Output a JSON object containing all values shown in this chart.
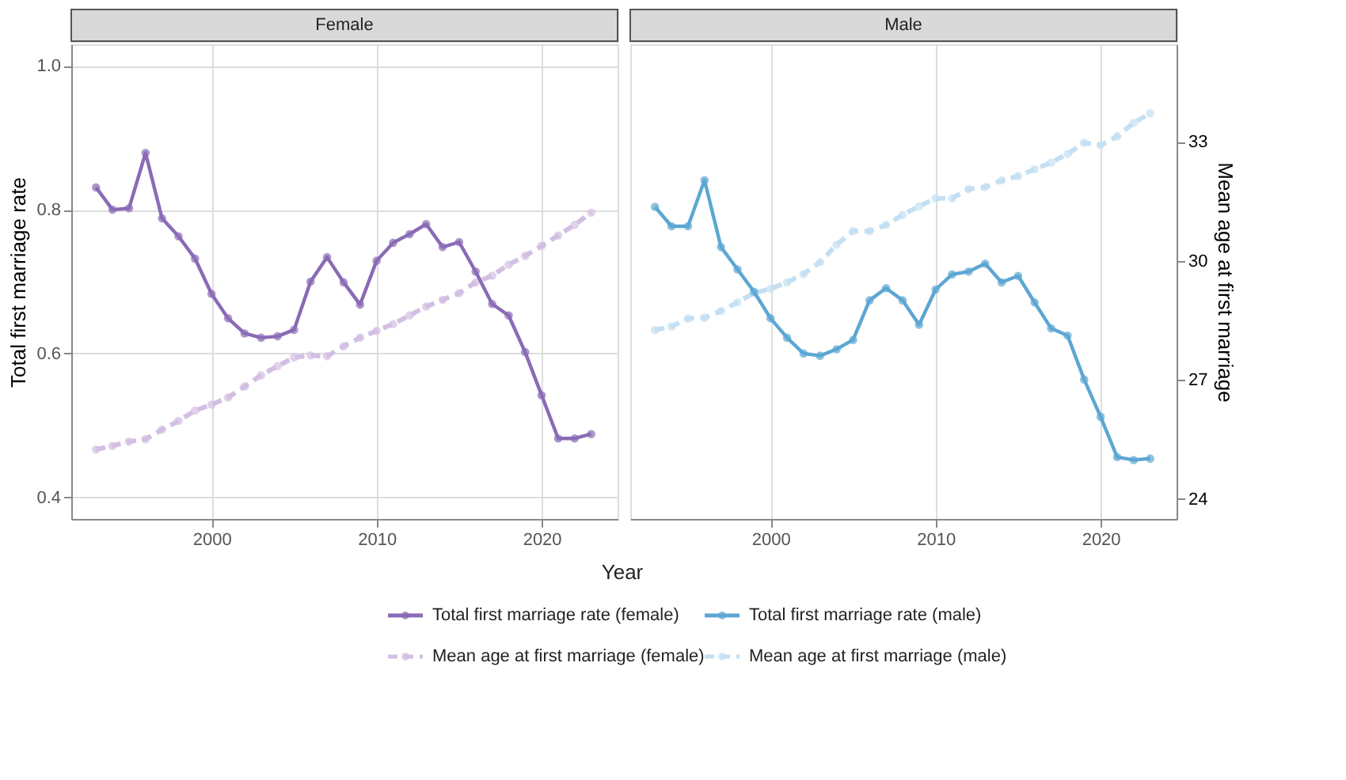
{
  "chart_data": [
    {
      "type": "line",
      "title": "Female",
      "xlabel": "Year",
      "ylabel": "Total first marriage rate",
      "xlim": [
        1991.5,
        2024.6
      ],
      "xticks": [
        2000,
        2010,
        2020
      ],
      "ylim": [
        0.37,
        1.03
      ],
      "yticks": [
        0.4,
        0.6,
        0.8,
        {
          "value": 1,
          "label": "1.0"
        }
      ],
      "y2lim": [
        23.5,
        35.46
      ],
      "grid": true,
      "legend": "bottom",
      "x": [
        1993,
        1994,
        1995,
        1996,
        1997,
        1998,
        1999,
        2000,
        2001,
        2002,
        2003,
        2004,
        2005,
        2006,
        2007,
        2008,
        2009,
        2010,
        2011,
        2012,
        2013,
        2014,
        2015,
        2016,
        2017,
        2018,
        2019,
        2020,
        2021,
        2022,
        2023
      ],
      "series": [
        {
          "name": "Total first marriage rate (female)",
          "color": "#8a6bb5",
          "marker": "circle",
          "line_style": "solid",
          "values": [
            0.831,
            0.8,
            0.802,
            0.879,
            0.788,
            0.763,
            0.732,
            0.683,
            0.649,
            0.628,
            0.622,
            0.624,
            0.633,
            0.7,
            0.734,
            0.699,
            0.668,
            0.729,
            0.754,
            0.766,
            0.78,
            0.748,
            0.755,
            0.714,
            0.669,
            0.653,
            0.602,
            0.542,
            0.482,
            0.482,
            0.488
          ]
        },
        {
          "name": "Mean age at first marriage (female)",
          "color": "#d3bfe2",
          "marker": "circle",
          "line_style": "dashed",
          "axis": "y2",
          "values": [
            25.25,
            25.34,
            25.45,
            25.51,
            25.75,
            25.97,
            26.23,
            26.38,
            26.56,
            26.84,
            27.12,
            27.35,
            27.57,
            27.62,
            27.6,
            27.85,
            28.07,
            28.24,
            28.41,
            28.63,
            28.85,
            29.02,
            29.19,
            29.46,
            29.63,
            29.91,
            30.13,
            30.38,
            30.64,
            30.91,
            31.22
          ]
        }
      ]
    },
    {
      "type": "line",
      "title": "Male",
      "y2label": "Mean age at first marriage",
      "xlim": [
        1991.5,
        2024.6
      ],
      "xticks": [
        2000,
        2010,
        2020
      ],
      "ylim": [
        0.37,
        1.03
      ],
      "y2lim": [
        23.5,
        35.46
      ],
      "y2ticks": [
        24,
        27,
        30,
        33
      ],
      "grid": true,
      "legend": "bottom",
      "x": [
        1993,
        1994,
        1995,
        1996,
        1997,
        1998,
        1999,
        2000,
        2001,
        2002,
        2003,
        2004,
        2005,
        2006,
        2007,
        2008,
        2009,
        2010,
        2011,
        2012,
        2013,
        2014,
        2015,
        2016,
        2017,
        2018,
        2019,
        2020,
        2021,
        2022,
        2023
      ],
      "series": [
        {
          "name": "Total first marriage rate (male)",
          "color": "#5da6d3",
          "marker": "circle",
          "line_style": "solid",
          "values": [
            0.804,
            0.777,
            0.777,
            0.841,
            0.748,
            0.717,
            0.686,
            0.649,
            0.622,
            0.6,
            0.597,
            0.606,
            0.619,
            0.674,
            0.691,
            0.674,
            0.64,
            0.689,
            0.71,
            0.714,
            0.725,
            0.699,
            0.708,
            0.671,
            0.635,
            0.625,
            0.564,
            0.512,
            0.456,
            0.452,
            0.454
          ]
        },
        {
          "name": "Mean age at first marriage (male)",
          "color": "#c4dff2",
          "marker": "circle",
          "line_style": "dashed",
          "axis": "y2",
          "values": [
            28.26,
            28.35,
            28.55,
            28.57,
            28.74,
            28.96,
            29.19,
            29.3,
            29.46,
            29.67,
            29.97,
            30.41,
            30.75,
            30.75,
            30.91,
            31.16,
            31.38,
            31.58,
            31.58,
            31.81,
            31.86,
            32.03,
            32.14,
            32.31,
            32.48,
            32.7,
            32.98,
            32.92,
            33.14,
            33.48,
            33.72
          ]
        }
      ]
    }
  ]
}
